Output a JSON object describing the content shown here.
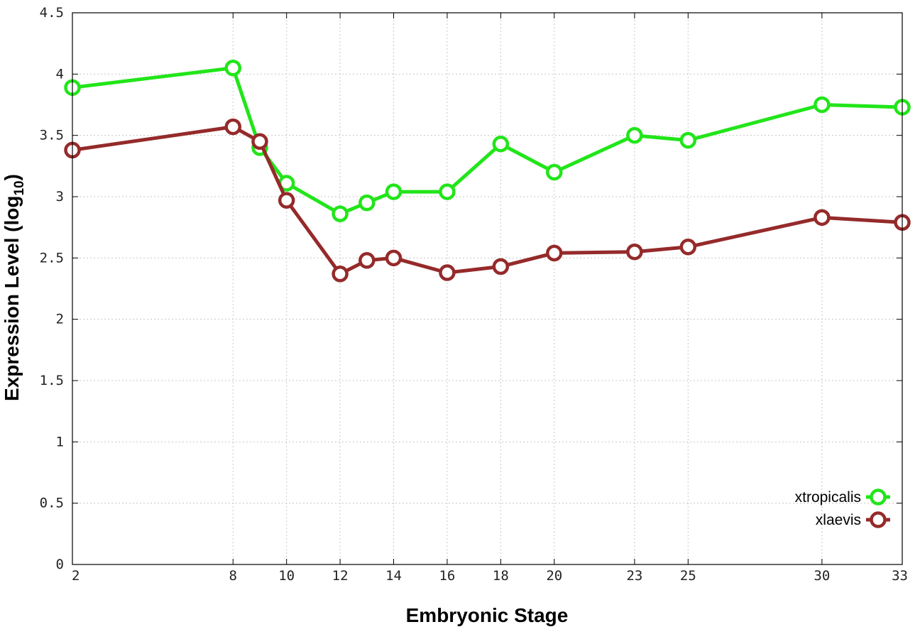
{
  "chart_data": {
    "type": "line",
    "xlabel": "Embryonic Stage",
    "ylabel": "Expression Level (log",
    "ylabel_sub": "10",
    "ylabel_suffix": ")",
    "xlim": [
      2,
      33
    ],
    "ylim": [
      0,
      4.5
    ],
    "x_ticks": [
      2,
      8,
      10,
      12,
      14,
      16,
      18,
      20,
      23,
      25,
      30,
      33
    ],
    "y_ticks": [
      0,
      0.5,
      1,
      1.5,
      2,
      2.5,
      3,
      3.5,
      4,
      4.5
    ],
    "grid": true,
    "legend_position": "bottom-right",
    "series": [
      {
        "name": "xtropicalis",
        "color": "#22e51a",
        "x": [
          2,
          8,
          9,
          10,
          12,
          13,
          14,
          16,
          18,
          20,
          23,
          25,
          30,
          33
        ],
        "y": [
          3.89,
          4.05,
          3.4,
          3.11,
          2.86,
          2.95,
          3.04,
          3.04,
          3.43,
          3.2,
          3.5,
          3.46,
          3.75,
          3.73
        ]
      },
      {
        "name": "xlaevis",
        "color": "#952a2a",
        "x": [
          2,
          8,
          9,
          10,
          12,
          13,
          14,
          16,
          18,
          20,
          23,
          25,
          30,
          33
        ],
        "y": [
          3.38,
          3.57,
          3.45,
          2.97,
          2.37,
          2.48,
          2.5,
          2.38,
          2.43,
          2.54,
          2.55,
          2.59,
          2.83,
          2.79
        ]
      }
    ]
  }
}
